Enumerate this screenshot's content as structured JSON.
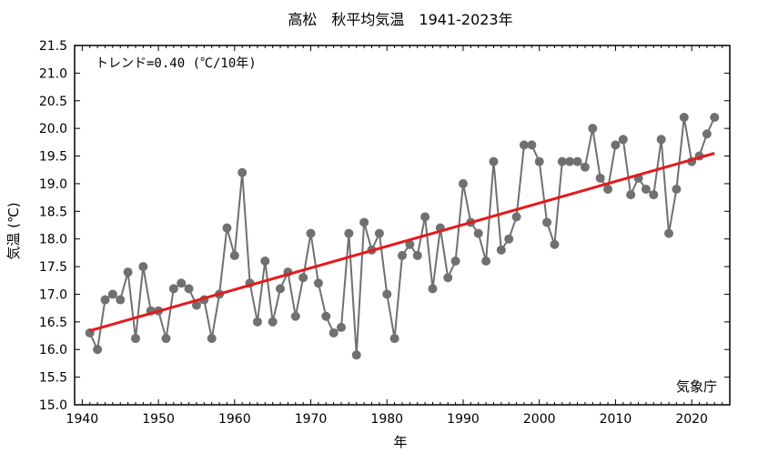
{
  "chart_data": {
    "type": "line",
    "title": "高松　秋平均気温　1941-2023年",
    "xlabel": "年",
    "ylabel": "気温 (℃)",
    "annotation": "トレンド=0.40 (℃/10年)",
    "source": "気象庁",
    "xlim": [
      1939,
      2025
    ],
    "ylim": [
      15.0,
      21.5
    ],
    "x_ticks": [
      "1940",
      "1950",
      "1960",
      "1970",
      "1980",
      "1990",
      "2000",
      "2010",
      "2020"
    ],
    "y_ticks": [
      "15.0",
      "15.5",
      "16.0",
      "16.5",
      "17.0",
      "17.5",
      "18.0",
      "18.5",
      "19.0",
      "19.5",
      "20.0",
      "20.5",
      "21.0",
      "21.5"
    ],
    "grid": false,
    "series": [
      {
        "color": "#707070",
        "x": [
          1941,
          1942,
          1943,
          1944,
          1945,
          1946,
          1947,
          1948,
          1949,
          1950,
          1951,
          1952,
          1953,
          1954,
          1955,
          1956,
          1957,
          1958,
          1959,
          1960,
          1961,
          1962,
          1963,
          1964,
          1965,
          1966,
          1967,
          1968,
          1969,
          1970,
          1971,
          1972,
          1973,
          1974,
          1975,
          1976,
          1977,
          1978,
          1979,
          1980,
          1981,
          1982,
          1983,
          1984,
          1985,
          1986,
          1987,
          1988,
          1989,
          1990,
          1991,
          1992,
          1993,
          1994,
          1995,
          1996,
          1997,
          1998,
          1999,
          2000,
          2001,
          2002,
          2003,
          2004,
          2005,
          2006,
          2007,
          2008,
          2009,
          2010,
          2011,
          2012,
          2013,
          2014,
          2015,
          2016,
          2017,
          2018,
          2019,
          2020,
          2021,
          2022,
          2023
        ],
        "values": [
          16.3,
          16.0,
          16.9,
          17.0,
          16.9,
          17.4,
          16.2,
          17.5,
          16.7,
          16.7,
          16.2,
          17.1,
          17.2,
          17.1,
          16.8,
          16.9,
          16.2,
          17.0,
          18.2,
          17.7,
          19.2,
          17.2,
          16.5,
          17.6,
          16.5,
          17.1,
          17.4,
          16.6,
          17.3,
          18.1,
          17.2,
          16.6,
          16.3,
          16.4,
          18.1,
          15.9,
          18.3,
          17.8,
          18.1,
          17.0,
          16.2,
          17.7,
          17.9,
          17.7,
          18.4,
          17.1,
          18.2,
          17.3,
          17.6,
          19.0,
          18.3,
          18.1,
          17.6,
          19.4,
          17.8,
          18.0,
          18.4,
          19.7,
          19.7,
          19.4,
          18.3,
          17.9,
          19.4,
          19.4,
          19.4,
          19.3,
          20.0,
          19.1,
          18.9,
          19.7,
          19.8,
          18.8,
          19.1,
          18.9,
          18.8,
          19.8,
          18.1,
          18.9,
          20.2,
          19.4,
          19.5,
          19.9,
          20.2
        ]
      }
    ],
    "trend": {
      "color": "#e41a1c",
      "x": [
        1941,
        2023
      ],
      "values": [
        16.34,
        19.55
      ]
    }
  }
}
